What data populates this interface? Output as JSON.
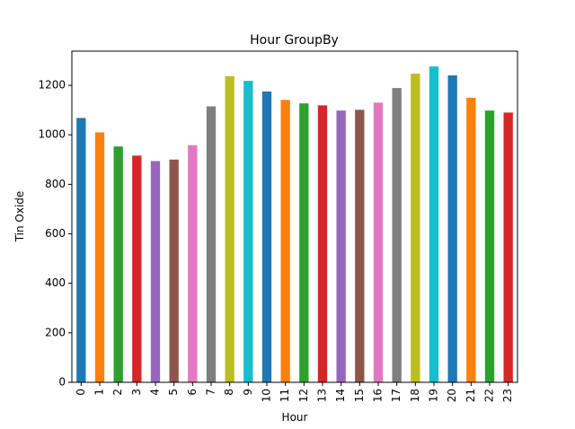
{
  "chart_data": {
    "type": "bar",
    "title": "Hour GroupBy",
    "xlabel": "Hour",
    "ylabel": "Tin Oxide",
    "categories": [
      "0",
      "1",
      "2",
      "3",
      "4",
      "5",
      "6",
      "7",
      "8",
      "9",
      "10",
      "11",
      "12",
      "13",
      "14",
      "15",
      "16",
      "17",
      "18",
      "19",
      "20",
      "21",
      "22",
      "23"
    ],
    "values": [
      1068,
      1010,
      953,
      916,
      894,
      900,
      958,
      1115,
      1237,
      1218,
      1175,
      1141,
      1127,
      1119,
      1098,
      1101,
      1130,
      1189,
      1247,
      1276,
      1240,
      1150,
      1098,
      1090
    ],
    "ylim": [
      0,
      1338
    ],
    "yticks": [
      0,
      200,
      400,
      600,
      800,
      1000,
      1200
    ],
    "ytick_labels": [
      "0",
      "200",
      "400",
      "600",
      "800",
      "1000",
      "1200"
    ],
    "grid": false,
    "legend": "none",
    "palette": [
      "#1f77b4",
      "#ff7f0e",
      "#2ca02c",
      "#d62728",
      "#9467bd",
      "#8c564b",
      "#e377c2",
      "#7f7f7f",
      "#bcbd22",
      "#17becf"
    ]
  }
}
